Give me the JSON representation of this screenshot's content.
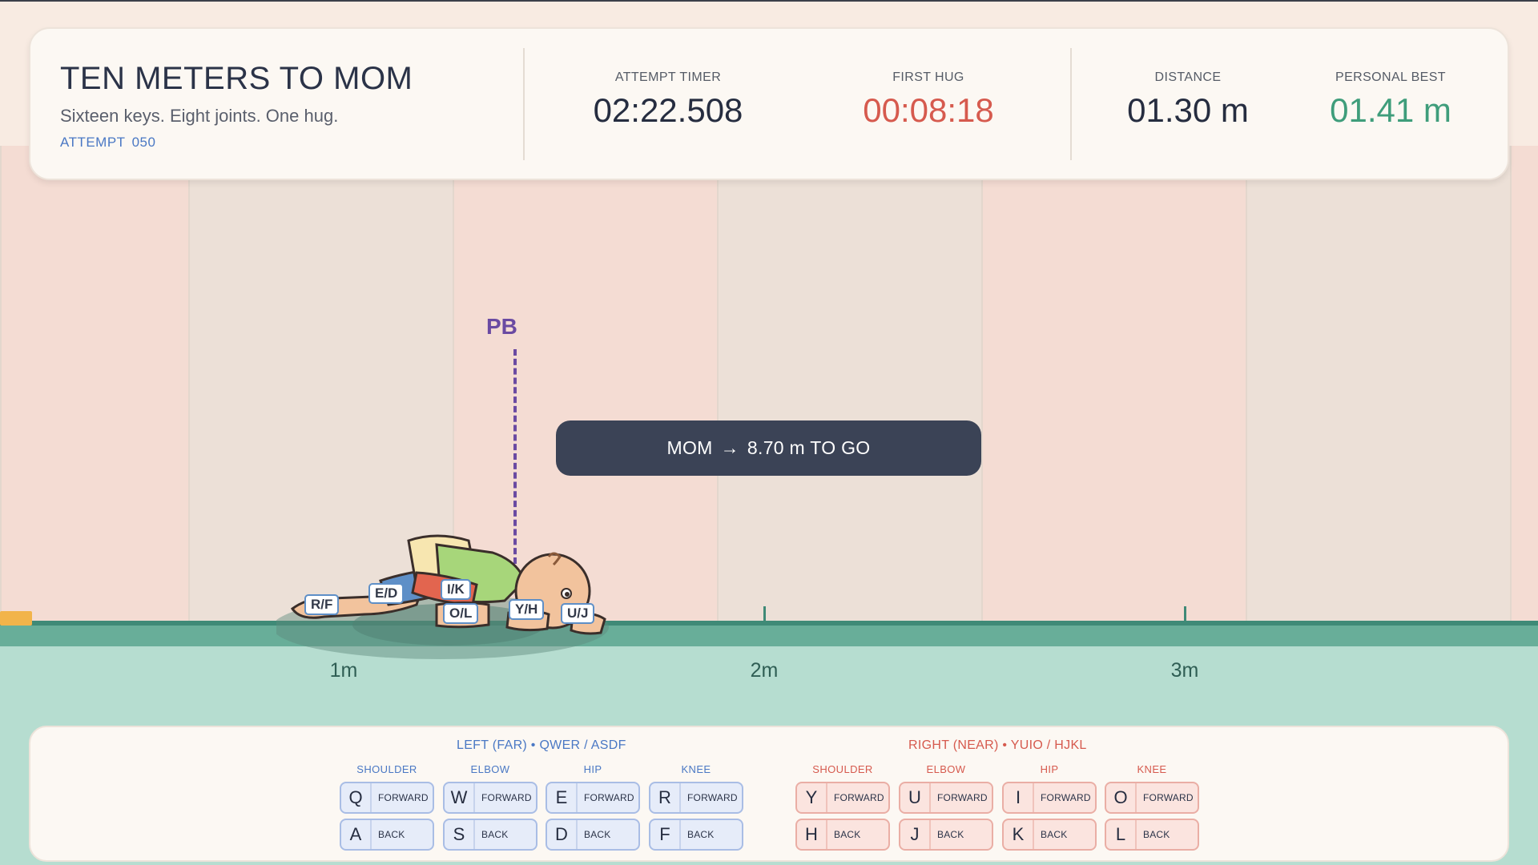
{
  "hud": {
    "title": "TEN METERS TO MOM",
    "subtitle": "Sixteen keys. Eight joints. One hug.",
    "attempt_label": "ATTEMPT",
    "attempt_number": "050",
    "attempt_timer_label": "ATTEMPT TIMER",
    "attempt_timer_value": "02:22.508",
    "first_hug_label": "FIRST HUG",
    "first_hug_value": "00:08:18",
    "distance_label": "DISTANCE",
    "distance_value": "01.30 m",
    "personal_best_label": "PERSONAL BEST",
    "personal_best_value": "01.41 m"
  },
  "track": {
    "pb_marker": "PB",
    "mom_label": "MOM",
    "mom_arrow": "→",
    "mom_remaining": "8.70 m TO GO",
    "meter_labels": [
      "1m",
      "2m",
      "3m"
    ]
  },
  "baby_joint_tags": [
    "R/F",
    "E/D",
    "I/K",
    "O/L",
    "Y/H",
    "U/J"
  ],
  "controls": {
    "left_heading": "LEFT (FAR)  •  QWER / ASDF",
    "right_heading": "RIGHT (NEAR)  •  YUIO / HJKL",
    "left_joints": [
      {
        "name": "SHOULDER",
        "forward_key": "Q",
        "back_key": "A"
      },
      {
        "name": "ELBOW",
        "forward_key": "W",
        "back_key": "S"
      },
      {
        "name": "HIP",
        "forward_key": "E",
        "back_key": "D"
      },
      {
        "name": "KNEE",
        "forward_key": "R",
        "back_key": "F"
      }
    ],
    "right_joints": [
      {
        "name": "SHOULDER",
        "forward_key": "Y",
        "back_key": "H"
      },
      {
        "name": "ELBOW",
        "forward_key": "U",
        "back_key": "J"
      },
      {
        "name": "HIP",
        "forward_key": "I",
        "back_key": "K"
      },
      {
        "name": "KNEE",
        "forward_key": "O",
        "back_key": "L"
      }
    ],
    "forward_label": "FORWARD",
    "back_label": "BACK"
  },
  "colors": {
    "left_accent": "#4a78c4",
    "right_accent": "#d65a4e",
    "pb_marker": "#6a4aa2",
    "ground": "#3f8a77",
    "mom_pill": "#3b4356"
  }
}
